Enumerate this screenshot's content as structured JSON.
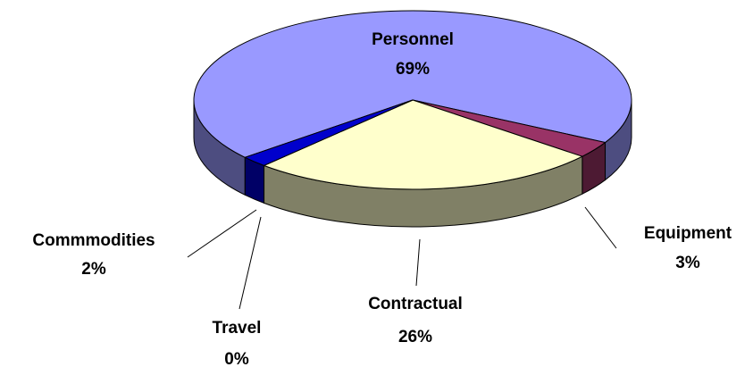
{
  "chart_data": {
    "type": "pie3d",
    "categories": [
      "Personnel",
      "Equipment",
      "Contractual",
      "Travel",
      "Commmodities"
    ],
    "values": [
      69,
      3,
      26,
      0,
      2
    ],
    "value_labels": [
      "69%",
      "3%",
      "26%",
      "0%",
      "2%"
    ],
    "colors": [
      "#9999ff",
      "#993366",
      "#ffffcc",
      "#ccffff",
      "#0000cc"
    ]
  }
}
